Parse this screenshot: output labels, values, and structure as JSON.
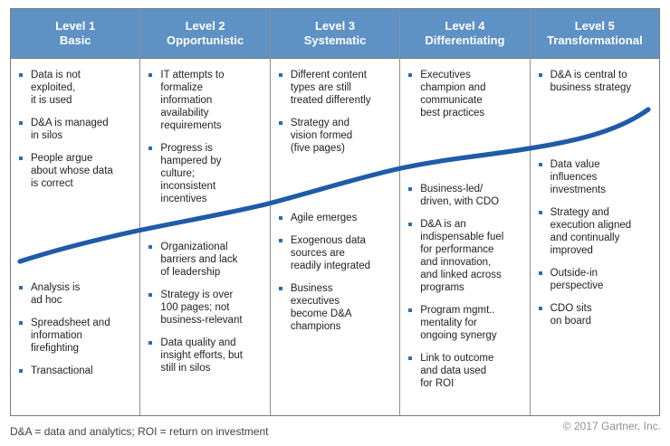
{
  "columns": [
    {
      "level": "Level 1",
      "name": "Basic",
      "top_items": [
        "Data is not\nexploited,\nit is used",
        "D&A is managed\nin silos",
        "People argue\nabout whose data\nis correct"
      ],
      "bottom_items": [
        "Analysis is\nad hoc",
        "Spreadsheet and\ninformation\nfirefighting",
        "Transactional"
      ]
    },
    {
      "level": "Level 2",
      "name": "Opportunistic",
      "top_items": [
        "IT attempts to\nformalize\ninformation\navailability\nrequirements",
        "Progress is\nhampered by\nculture;\ninconsistent\nincentives"
      ],
      "bottom_items": [
        "Organizational\nbarriers and lack\nof leadership",
        "Strategy is over\n100 pages; not\nbusiness-relevant",
        "Data quality and\ninsight efforts, but\nstill in silos"
      ]
    },
    {
      "level": "Level 3",
      "name": "Systematic",
      "top_items": [
        "Different content\ntypes are still\ntreated differently",
        "Strategy and\nvision formed\n(five pages)"
      ],
      "bottom_items": [
        "Agile emerges",
        "Exogenous data\nsources are\nreadily integrated",
        "Business\nexecutives\nbecome D&A\nchampions"
      ]
    },
    {
      "level": "Level 4",
      "name": "Differentiating",
      "top_items": [
        "Executives\nchampion and\ncommunicate\nbest practices"
      ],
      "bottom_items": [
        "Business-led/\ndriven, with CDO",
        "D&A is an\nindispensable fuel\nfor performance\nand innovation,\nand linked across\nprograms",
        "Program mgmt..\nmentality for\nongoing synergy",
        "Link to outcome\nand data used\nfor ROI"
      ]
    },
    {
      "level": "Level 5",
      "name": "Transformational",
      "top_items": [
        "D&A is central to\nbusiness strategy"
      ],
      "bottom_items": [
        "Data value\ninfluences\ninvestments",
        "Strategy and\nexecution aligned\nand continually\nimproved",
        "Outside-in\nperspective",
        "CDO sits\non board"
      ]
    }
  ],
  "footnote": "D&A = data and analytics; ROI = return on investment",
  "copyright": "© 2017 Gartner, Inc.",
  "colors": {
    "header_blue": "#5e91c4",
    "curve_blue": "#1f5ba8",
    "bullet_blue": "#2a6cb5",
    "border_gray": "#7b7b7b"
  }
}
